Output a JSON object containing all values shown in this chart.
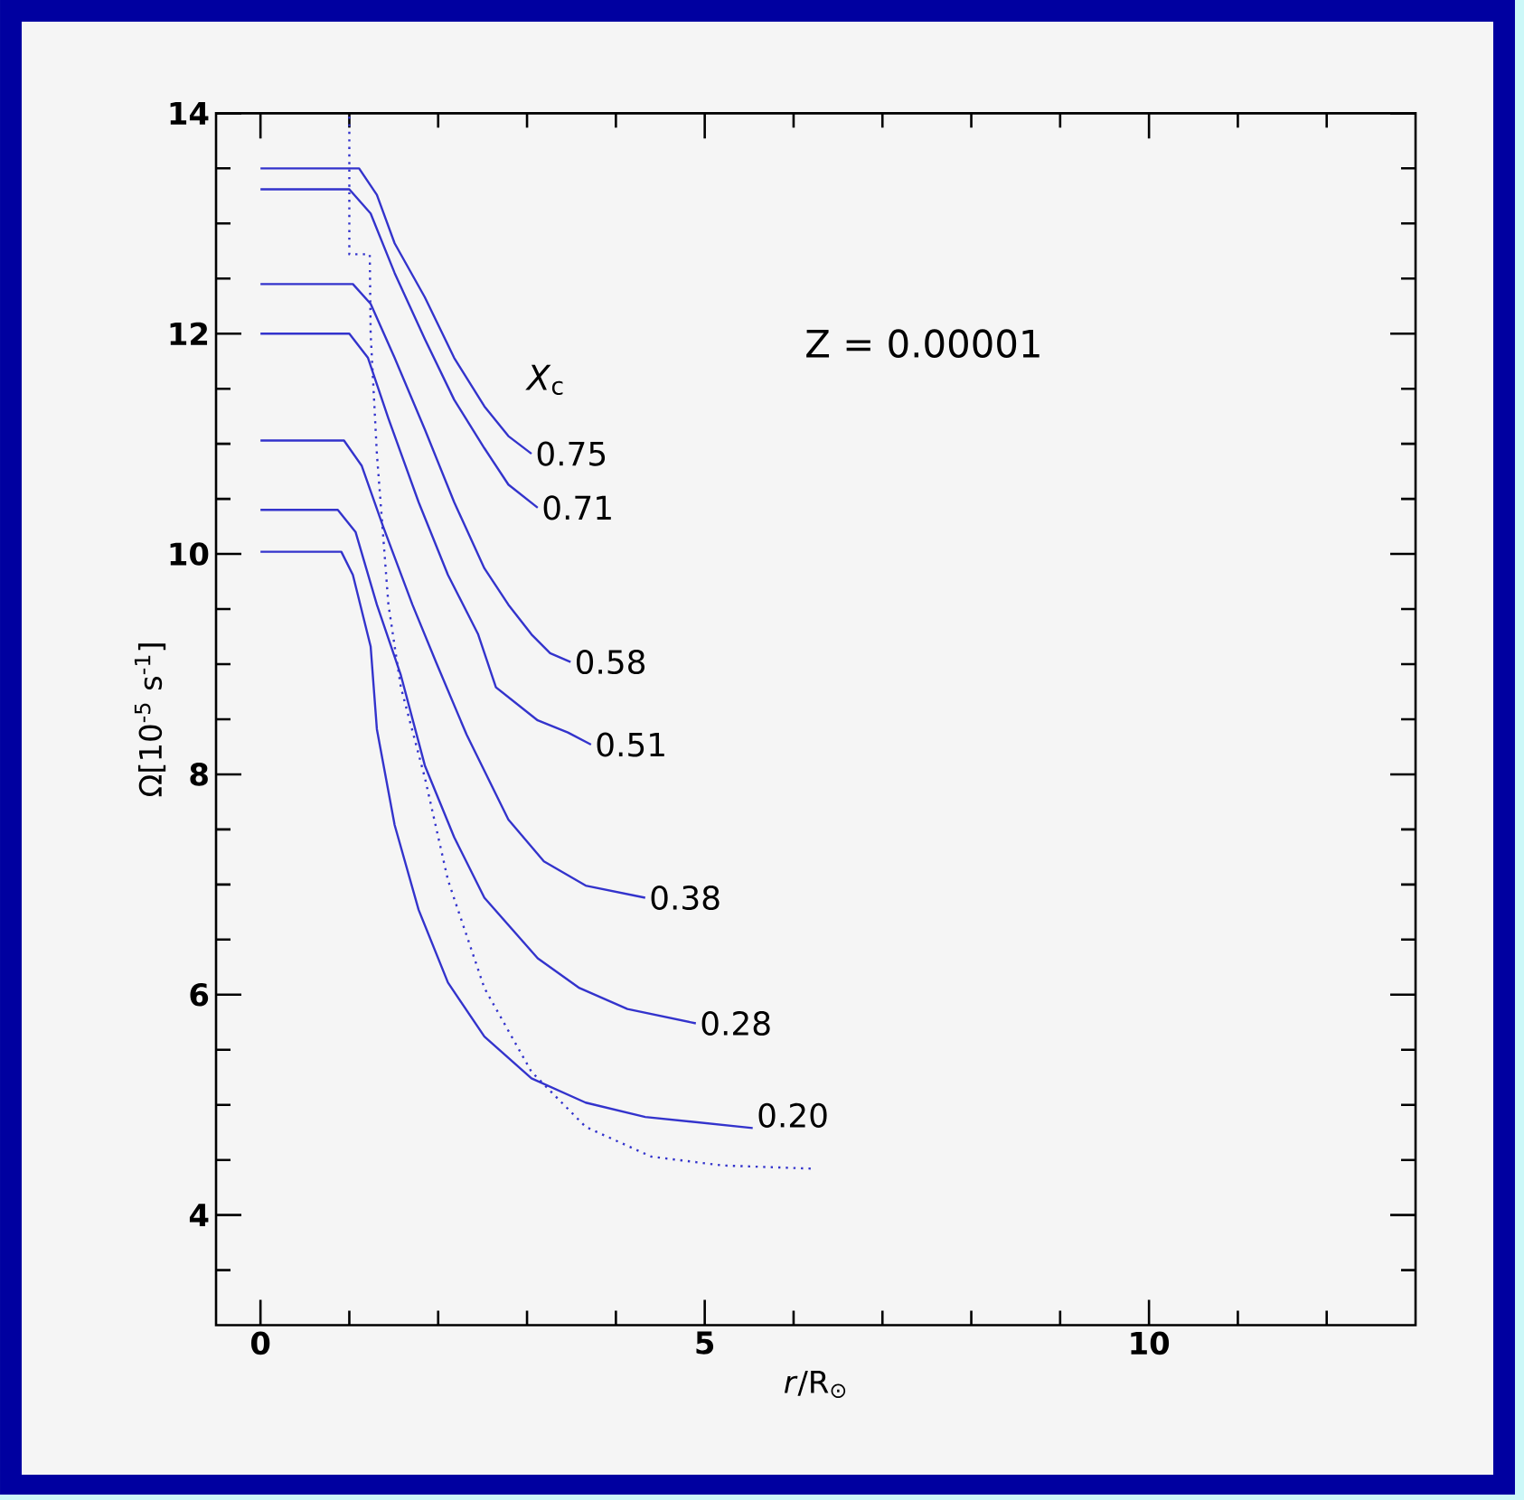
{
  "chart_data": {
    "type": "line",
    "xlabel": "*r*/R$_{⊙}$",
    "ylabel": "Ω[10$^{-5}$ s$^{-1}$]",
    "annotations": [
      "*X*$_{c}$",
      "Z  =  0.00001"
    ],
    "xlim": [
      -0.5,
      13
    ],
    "ylim": [
      3,
      14
    ],
    "xticks": [
      0,
      {
        "value": 1,
        "label": null
      },
      {
        "value": 2,
        "label": null
      },
      {
        "value": 3,
        "label": null
      },
      {
        "value": 4,
        "label": null
      },
      5,
      {
        "value": 6,
        "label": null
      },
      {
        "value": 7,
        "label": null
      },
      {
        "value": 8,
        "label": null
      },
      {
        "value": 9,
        "label": null
      },
      10,
      {
        "value": 11,
        "label": null
      },
      {
        "value": 12,
        "label": null
      }
    ],
    "yticks": [
      {
        "value": 3.5,
        "label": null
      },
      4,
      {
        "value": 4.5,
        "label": null
      },
      {
        "value": 5,
        "label": null
      },
      {
        "value": 5.5,
        "label": null
      },
      6,
      {
        "value": 6.5,
        "label": null
      },
      {
        "value": 7,
        "label": null
      },
      {
        "value": 7.5,
        "label": null
      },
      8,
      {
        "value": 8.5,
        "label": null
      },
      {
        "value": 9,
        "label": null
      },
      {
        "value": 9.5,
        "label": null
      },
      10,
      {
        "value": 10.5,
        "label": null
      },
      {
        "value": 11,
        "label": null
      },
      {
        "value": 11.5,
        "label": null
      },
      12,
      {
        "value": 12.5,
        "label": null
      },
      {
        "value": 13,
        "label": null
      },
      {
        "value": 13.5,
        "label": null
      },
      14
    ],
    "grid": false,
    "marker": "none",
    "line_style": "solid",
    "series": [
      {
        "name": "0.75",
        "color": "#3333cc",
        "x": [
          0,
          1.11,
          1.31,
          1.51,
          1.85,
          2.18,
          2.52,
          2.79,
          3.05
        ],
        "values": [
          13.5,
          13.5,
          13.26,
          12.82,
          12.33,
          11.78,
          11.34,
          11.07,
          10.91
        ]
      },
      {
        "name": "0.71",
        "color": "#3333cc",
        "x": [
          0,
          1.0,
          1.24,
          1.51,
          1.85,
          2.18,
          2.52,
          2.79,
          3.12
        ],
        "values": [
          13.31,
          13.31,
          13.09,
          12.55,
          11.95,
          11.4,
          10.96,
          10.63,
          10.42
        ]
      },
      {
        "name": "0.58",
        "color": "#3333cc",
        "x": [
          0,
          1.04,
          1.24,
          1.51,
          1.85,
          2.18,
          2.52,
          2.79,
          3.05,
          3.26,
          3.49
        ],
        "values": [
          12.45,
          12.45,
          12.27,
          11.78,
          11.13,
          10.47,
          9.87,
          9.54,
          9.27,
          9.1,
          9.02
        ]
      },
      {
        "name": "0.51",
        "color": "#3333cc",
        "x": [
          0,
          1.0,
          1.21,
          1.44,
          1.78,
          2.11,
          2.45,
          2.65,
          3.12,
          3.46,
          3.72
        ],
        "values": [
          12.0,
          12.0,
          11.78,
          11.23,
          10.47,
          9.81,
          9.27,
          8.79,
          8.49,
          8.38,
          8.27
        ]
      },
      {
        "name": "0.38",
        "color": "#3333cc",
        "x": [
          0,
          0.94,
          1.14,
          1.38,
          1.71,
          1.98,
          2.32,
          2.79,
          3.19,
          3.66,
          4.33
        ],
        "values": [
          11.03,
          11.03,
          10.8,
          10.25,
          9.54,
          9.01,
          8.36,
          7.59,
          7.21,
          6.99,
          6.88
        ]
      },
      {
        "name": "0.28",
        "color": "#3333cc",
        "x": [
          0,
          0.87,
          1.07,
          1.31,
          1.58,
          1.85,
          2.18,
          2.52,
          3.12,
          3.59,
          4.13,
          4.9
        ],
        "values": [
          10.4,
          10.4,
          10.2,
          9.54,
          8.9,
          8.08,
          7.43,
          6.88,
          6.33,
          6.06,
          5.87,
          5.74
        ]
      },
      {
        "name": "0.20",
        "color": "#3333cc",
        "x": [
          0,
          0.91,
          1.04,
          1.24,
          1.31,
          1.51,
          1.78,
          2.11,
          2.52,
          3.05,
          3.66,
          4.33,
          5.54
        ],
        "values": [
          10.02,
          10.02,
          9.81,
          9.16,
          8.41,
          7.54,
          6.77,
          6.11,
          5.62,
          5.24,
          5.02,
          4.89,
          4.79
        ]
      },
      {
        "color": "#3333cc",
        "line_style": "dotted",
        "x": [
          1.0,
          1.0,
          1.23,
          1.24,
          1.31,
          1.44,
          1.58,
          1.85,
          2.11,
          2.52,
          3.05,
          3.66,
          4.4,
          5.2,
          6.24
        ],
        "values": [
          13.97,
          12.72,
          12.72,
          12.0,
          10.91,
          9.54,
          8.79,
          7.97,
          7.04,
          6.06,
          5.3,
          4.8,
          4.53,
          4.45,
          4.42
        ]
      }
    ]
  }
}
